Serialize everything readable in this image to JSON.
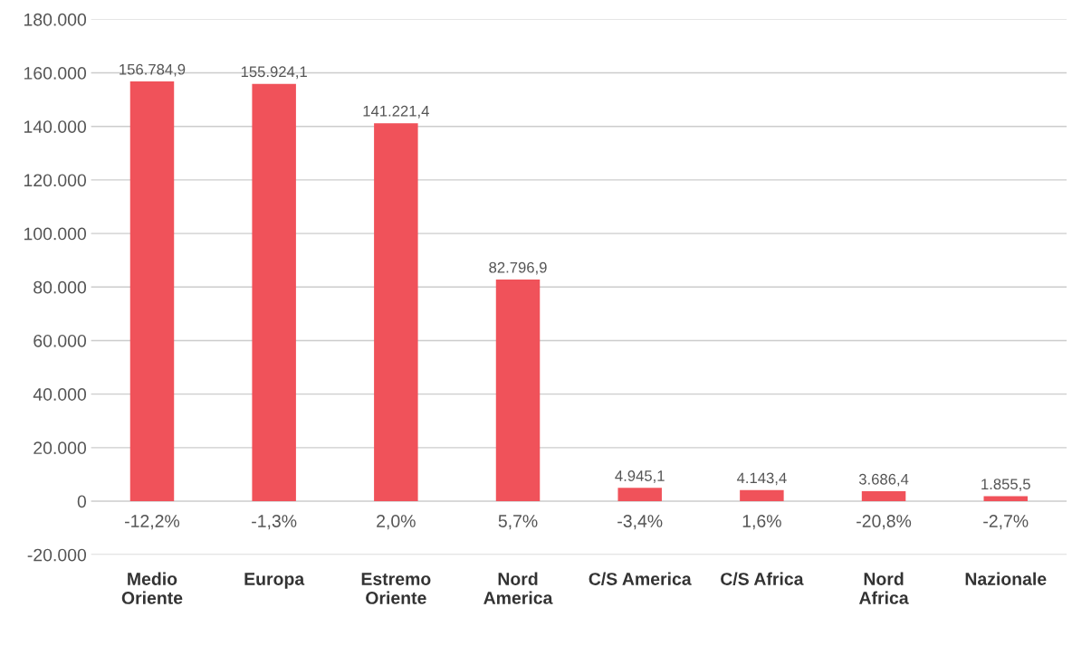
{
  "chart_data": {
    "type": "bar",
    "categories": [
      "Medio\nOriente",
      "Europa",
      "Estremo\nOriente",
      "Nord\nAmerica",
      "C/S America",
      "C/S Africa",
      "Nord\nAfrica",
      "Nazionale"
    ],
    "values": [
      156784.9,
      155924.1,
      141221.4,
      82796.9,
      4945.1,
      4143.4,
      3686.4,
      1855.5
    ],
    "value_labels": [
      "156.784,9",
      "155.924,1",
      "141.221,4",
      "82.796,9",
      "4.945,1",
      "4.143,4",
      "3.686,4",
      "1.855,5"
    ],
    "color": "#f0525a",
    "ylim": [
      -20000,
      180000
    ],
    "yticks": [
      {
        "value": -20000,
        "label": "-20.000"
      },
      {
        "value": 0,
        "label": "0"
      },
      {
        "value": 20000,
        "label": "20.000"
      },
      {
        "value": 40000,
        "label": "40.000"
      },
      {
        "value": 60000,
        "label": "60.000"
      },
      {
        "value": 80000,
        "label": "80.000"
      },
      {
        "value": 100000,
        "label": "100.000"
      },
      {
        "value": 120000,
        "label": "120.000"
      },
      {
        "value": 140000,
        "label": "140.000"
      },
      {
        "value": 160000,
        "label": "160.000"
      },
      {
        "value": 180000,
        "label": "180.000"
      }
    ],
    "grid": "y",
    "annotations": [
      "-12,2%",
      "-1,3%",
      "2,0%",
      "5,7%",
      "-3,4%",
      "1,6%",
      "-20,8%",
      "-2,7%"
    ]
  }
}
